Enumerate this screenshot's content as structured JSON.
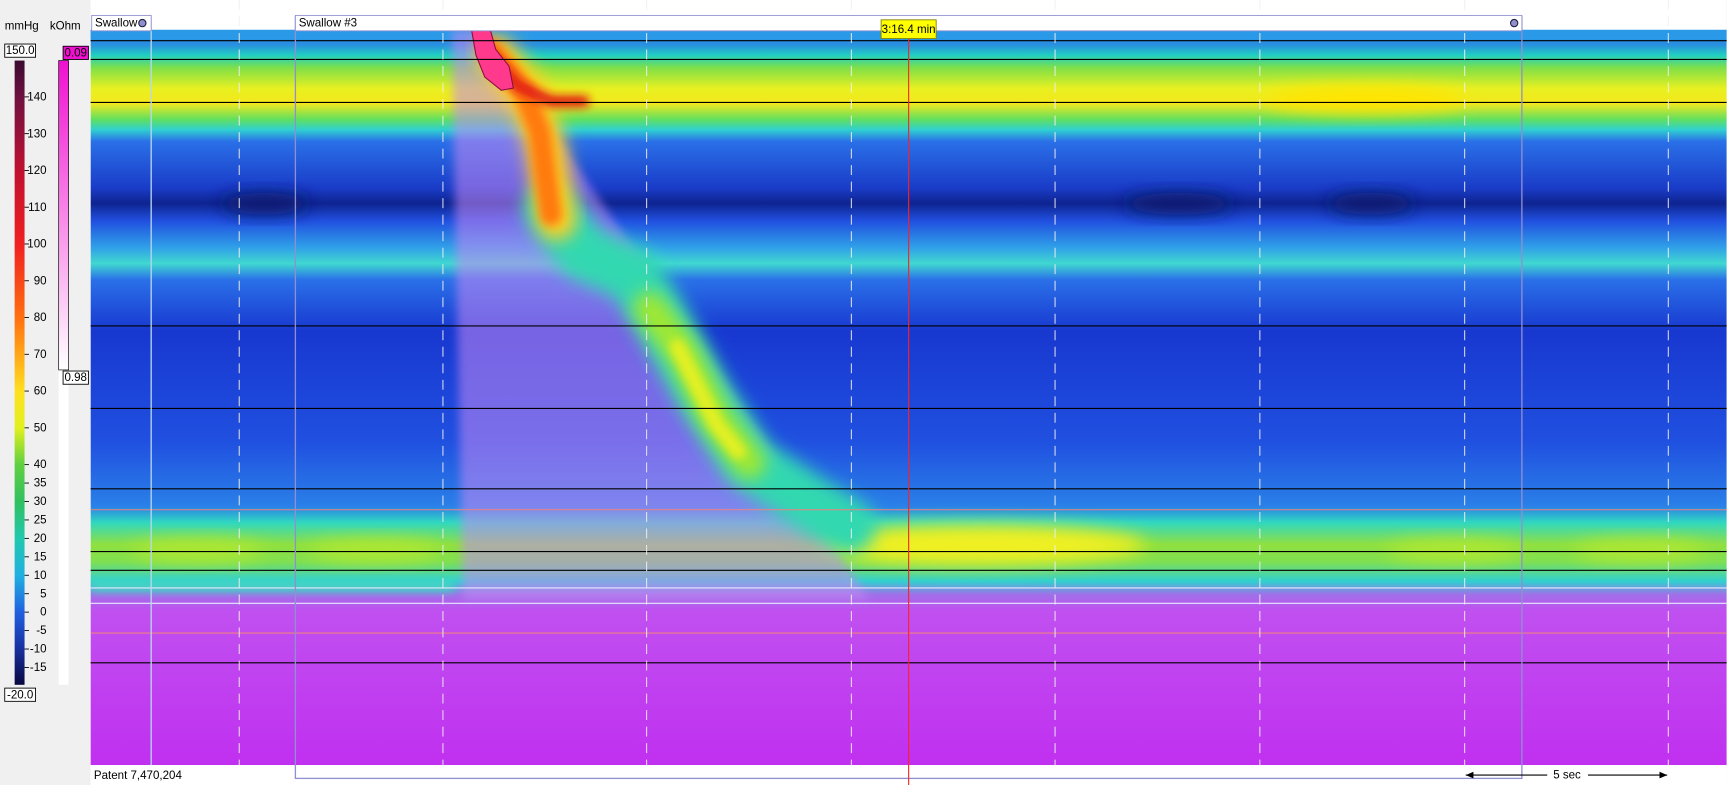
{
  "legend": {
    "pressure_unit": "mmHg",
    "impedance_unit": "kOhm",
    "pressure_max": "150.0",
    "pressure_min": "-20.0",
    "impedance_min": "0.09",
    "impedance_max": "0.98",
    "pressure_ticks": [
      "140",
      "130",
      "120",
      "110",
      "100",
      "90",
      "80",
      "70",
      "60",
      "50",
      "40",
      "35",
      "30",
      "25",
      "20",
      "15",
      "10",
      "5",
      "0",
      "-5",
      "-10",
      "-15"
    ]
  },
  "events": {
    "swallow_marker": "Swallow",
    "swallow_label": "Swallow #3",
    "cursor_time": "3:16.4 min",
    "scale_bar": "5 sec"
  },
  "footer": {
    "patent": "Patent 7,470,204"
  }
}
